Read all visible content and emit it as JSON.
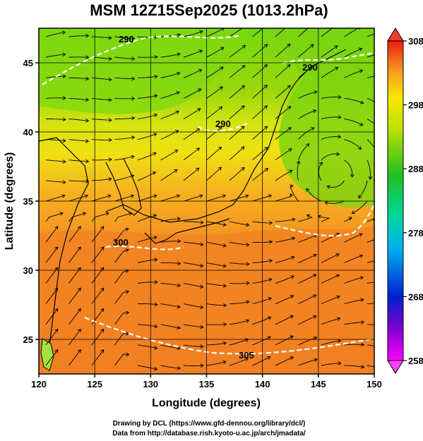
{
  "chart_data": {
    "type": "heatmap",
    "title": "MSM 12Z15Sep2025 (1013.2hPa)",
    "xlabel": "Longitude (degrees)",
    "ylabel": "Latitude  (degrees)",
    "xlim": [
      120,
      150
    ],
    "ylim": [
      22.5,
      47.5
    ],
    "x_ticks": [
      "120",
      "125",
      "130",
      "135",
      "140",
      "145",
      "150"
    ],
    "y_ticks": [
      "25",
      "30",
      "35",
      "40",
      "45"
    ],
    "x_tick_values": [
      120,
      125,
      130,
      135,
      140,
      145,
      150
    ],
    "y_tick_values": [
      25,
      30,
      35,
      40,
      45
    ],
    "grid": true,
    "colorbar": {
      "min": 258,
      "max": 308,
      "ticks": [
        "308",
        "298",
        "288",
        "278",
        "268",
        "258"
      ],
      "tick_values": [
        308,
        298,
        288,
        278,
        268,
        258
      ],
      "extend": "both"
    },
    "contour_labels": [
      "290",
      "290",
      "290",
      "300",
      "305"
    ]
  },
  "footer": {
    "line1": "Drawing by DCL (https://www.gfd-dennou.org/library/dcl/)",
    "line2": "Data from http://database.rish.kyoto-u.ac.jp/arch/jmadata/"
  },
  "colors": {
    "cold": "#ff2bff",
    "warm": "#f0301e",
    "contour": "#ffffff",
    "streamline": "#000000"
  }
}
